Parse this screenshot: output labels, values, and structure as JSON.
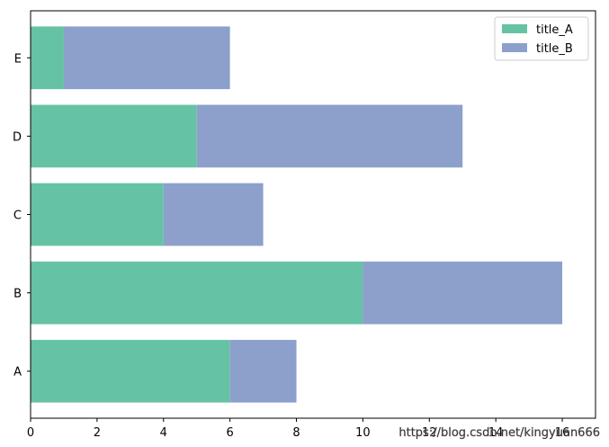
{
  "chart_data": {
    "type": "bar",
    "orientation": "horizontal",
    "stacked": true,
    "categories": [
      "A",
      "B",
      "C",
      "D",
      "E"
    ],
    "series": [
      {
        "name": "title_A",
        "values": [
          6,
          10,
          4,
          5,
          1
        ],
        "color": "#66c2a5"
      },
      {
        "name": "title_B",
        "values": [
          2,
          6,
          3,
          8,
          5
        ],
        "color": "#8da0cb"
      }
    ],
    "xlim": [
      0,
      17
    ],
    "xticks": [
      0,
      2,
      4,
      6,
      8,
      10,
      12,
      14,
      16
    ],
    "grid": false,
    "legend_position": "top-right"
  },
  "watermark": "https://blog.csdn.net/kingyuan666"
}
